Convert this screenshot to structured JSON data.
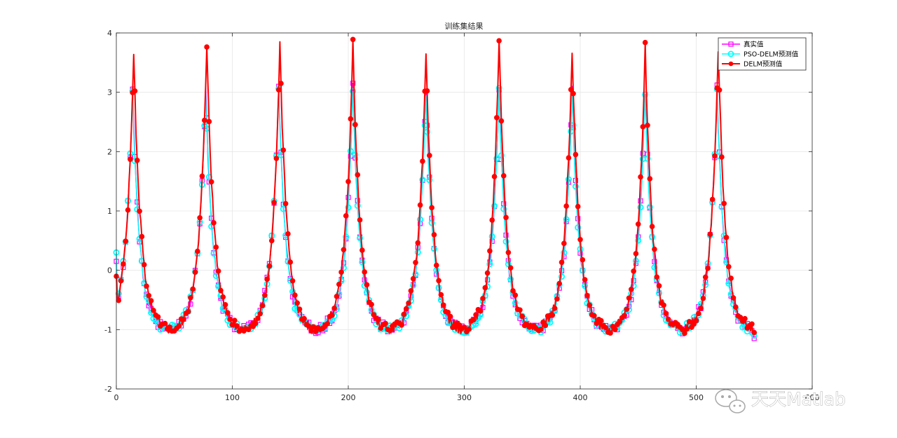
{
  "watermark": {
    "text": "天天Matlab",
    "icon": "wechat-icon"
  },
  "chart_data": {
    "type": "line",
    "title": "训练集结果",
    "xlabel": "",
    "ylabel": "",
    "xlim": [
      0,
      600
    ],
    "ylim": [
      -2,
      4
    ],
    "xticks": [
      0,
      100,
      200,
      300,
      400,
      500,
      600
    ],
    "xtick_labels": [
      "0",
      "100",
      "200",
      "300",
      "400",
      "500",
      "600"
    ],
    "yticks": [
      -2,
      -1,
      0,
      1,
      2,
      3,
      4
    ],
    "ytick_labels": [
      "-2",
      "-1",
      "0",
      "1",
      "2",
      "3",
      "4"
    ],
    "grid": true,
    "legend_position": "top-right",
    "x_start": 0,
    "x_end": 550,
    "period": 63.5,
    "troughs_value": -1.0,
    "series": [
      {
        "name": "真实值",
        "color": "#ff00ff",
        "marker": "square",
        "line_width": 1.5,
        "peaks": [
          {
            "x": 14,
            "y": 3.05
          },
          {
            "x": 77,
            "y": 3.1
          },
          {
            "x": 140,
            "y": 3.1
          },
          {
            "x": 204,
            "y": 3.1
          },
          {
            "x": 267,
            "y": 3.05
          },
          {
            "x": 330,
            "y": 3.05
          },
          {
            "x": 393,
            "y": 3.05
          },
          {
            "x": 456,
            "y": 3.0
          },
          {
            "x": 518,
            "y": 3.05
          }
        ],
        "start_y": 0.15,
        "end_y": -1.15,
        "min_y": -1.25
      },
      {
        "name": "PSO-DELM预测值",
        "color": "#00ffff",
        "marker": "circle",
        "line_width": 1.5,
        "peaks": [
          {
            "x": 14,
            "y": 3.0
          },
          {
            "x": 77,
            "y": 3.05
          },
          {
            "x": 140,
            "y": 3.0
          },
          {
            "x": 204,
            "y": 3.05
          },
          {
            "x": 267,
            "y": 3.0
          },
          {
            "x": 330,
            "y": 3.0
          },
          {
            "x": 393,
            "y": 3.0
          },
          {
            "x": 456,
            "y": 2.95
          },
          {
            "x": 518,
            "y": 3.0
          }
        ],
        "start_y": 0.3,
        "end_y": -1.1,
        "min_y": -1.2
      },
      {
        "name": "DELM预测值",
        "color": "#ff0000",
        "marker": "circle-filled",
        "line_width": 2.0,
        "peaks": [
          {
            "x": 15,
            "y": 3.65
          },
          {
            "x": 78,
            "y": 3.8
          },
          {
            "x": 141,
            "y": 3.8
          },
          {
            "x": 204,
            "y": 3.85
          },
          {
            "x": 267,
            "y": 3.7
          },
          {
            "x": 330,
            "y": 3.88
          },
          {
            "x": 393,
            "y": 3.72
          },
          {
            "x": 456,
            "y": 3.78
          },
          {
            "x": 519,
            "y": 3.75
          }
        ],
        "start_y": -0.1,
        "end_y": -1.05,
        "min_y": -1.05
      }
    ]
  }
}
